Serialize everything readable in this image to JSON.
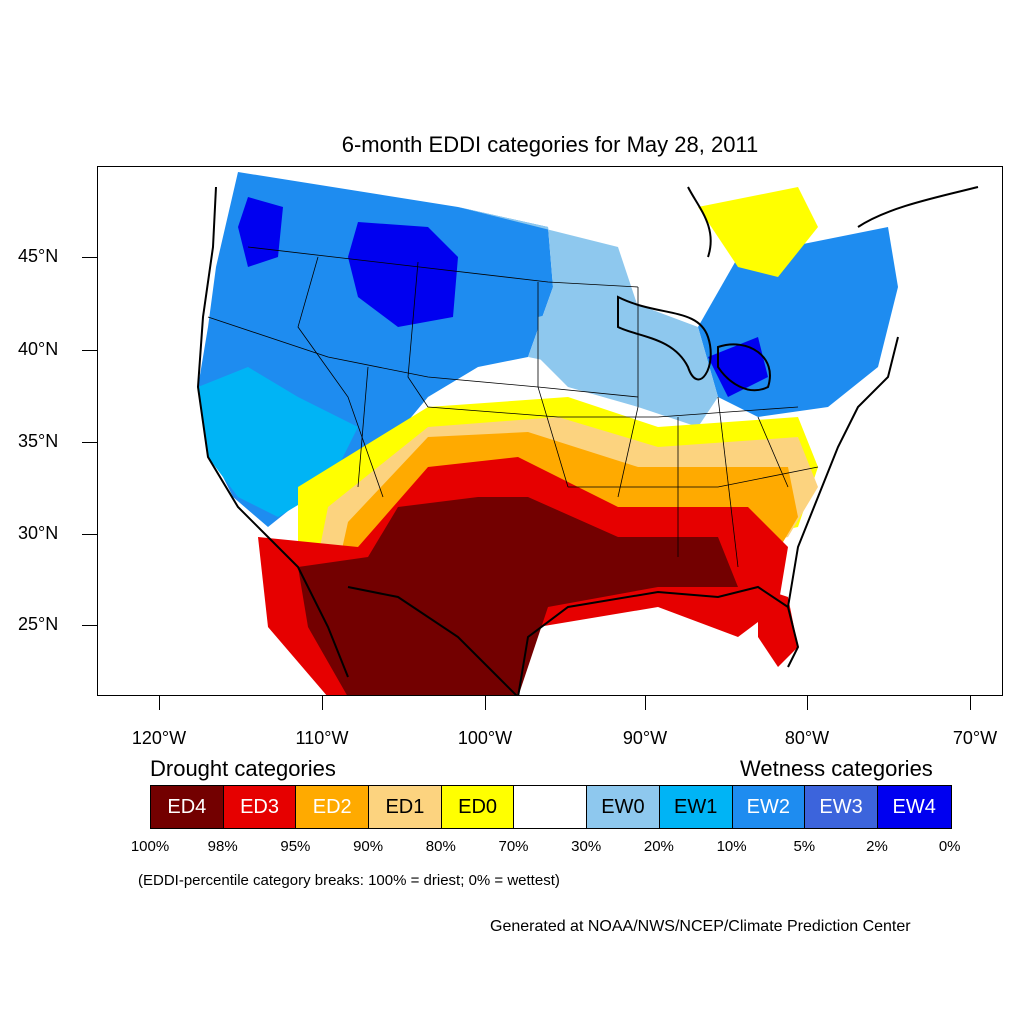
{
  "title": "6-month EDDI categories for May 28, 2011",
  "lat_labels": [
    "45°N",
    "40°N",
    "35°N",
    "30°N",
    "25°N"
  ],
  "lon_labels": [
    "120°W",
    "110°W",
    "100°W",
    "90°W",
    "80°W",
    "70°W"
  ],
  "legend": {
    "drought_heading": "Drought categories",
    "wetness_heading": "Wetness categories",
    "categories": [
      {
        "label": "ED4",
        "color": "#730000",
        "text_color": "#ffffff"
      },
      {
        "label": "ED3",
        "color": "#e60000",
        "text_color": "#ffffff"
      },
      {
        "label": "ED2",
        "color": "#ffaa00",
        "text_color": "#ffffff"
      },
      {
        "label": "ED1",
        "color": "#fcd37f",
        "text_color": "#000000"
      },
      {
        "label": "ED0",
        "color": "#ffff00",
        "text_color": "#000000"
      },
      {
        "label": "",
        "color": "#ffffff",
        "text_color": "#000000"
      },
      {
        "label": "EW0",
        "color": "#8ec8ee",
        "text_color": "#000000"
      },
      {
        "label": "EW1",
        "color": "#00b4f5",
        "text_color": "#000000"
      },
      {
        "label": "EW2",
        "color": "#1e8cf0",
        "text_color": "#ffffff"
      },
      {
        "label": "EW3",
        "color": "#3c64dc",
        "text_color": "#ffffff"
      },
      {
        "label": "EW4",
        "color": "#0000f0",
        "text_color": "#ffffff"
      }
    ],
    "breaks": [
      "100%",
      "98%",
      "95%",
      "90%",
      "80%",
      "70%",
      "30%",
      "20%",
      "10%",
      "5%",
      "2%",
      "0%"
    ]
  },
  "note": "(EDDI-percentile category breaks: 100% = driest; 0% = wettest)",
  "credit": "Generated at NOAA/NWS/NCEP/Climate Prediction Center"
}
